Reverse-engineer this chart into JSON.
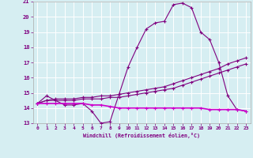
{
  "bg_color": "#d6eef2",
  "grid_color": "#ffffff",
  "line_color": "#800080",
  "xlabel": "Windchill (Refroidissement éolien,°C)",
  "xlim": [
    -0.5,
    23.5
  ],
  "ylim": [
    13,
    21
  ],
  "yticks": [
    13,
    14,
    15,
    16,
    17,
    18,
    19,
    20,
    21
  ],
  "xticks": [
    0,
    1,
    2,
    3,
    4,
    5,
    6,
    7,
    8,
    9,
    10,
    11,
    12,
    13,
    14,
    15,
    16,
    17,
    18,
    19,
    20,
    21,
    22,
    23
  ],
  "line1_x": [
    0,
    1,
    2,
    3,
    4,
    5,
    6,
    7,
    8,
    9,
    10,
    11,
    12,
    13,
    14,
    15,
    16,
    17,
    18,
    19,
    20,
    21,
    22,
    23
  ],
  "line1_y": [
    14.3,
    14.8,
    14.5,
    14.2,
    14.2,
    14.3,
    13.8,
    13.0,
    13.1,
    14.9,
    16.7,
    18.0,
    19.2,
    19.6,
    19.7,
    20.8,
    20.9,
    20.6,
    19.0,
    18.5,
    17.0,
    14.8,
    13.9,
    13.8
  ],
  "line2_x": [
    0,
    1,
    2,
    3,
    4,
    5,
    6,
    7,
    8,
    9,
    10,
    11,
    12,
    13,
    14,
    15,
    16,
    17,
    18,
    19,
    20,
    21,
    22,
    23
  ],
  "line2_y": [
    14.3,
    14.5,
    14.5,
    14.5,
    14.5,
    14.6,
    14.6,
    14.6,
    14.7,
    14.7,
    14.8,
    14.9,
    15.0,
    15.1,
    15.2,
    15.3,
    15.5,
    15.7,
    15.9,
    16.1,
    16.3,
    16.5,
    16.7,
    16.9
  ],
  "line3_x": [
    0,
    1,
    2,
    3,
    4,
    5,
    6,
    7,
    8,
    9,
    10,
    11,
    12,
    13,
    14,
    15,
    16,
    17,
    18,
    19,
    20,
    21,
    22,
    23
  ],
  "line3_y": [
    14.3,
    14.5,
    14.6,
    14.6,
    14.6,
    14.7,
    14.7,
    14.8,
    14.8,
    14.9,
    15.0,
    15.1,
    15.2,
    15.3,
    15.4,
    15.6,
    15.8,
    16.0,
    16.2,
    16.4,
    16.6,
    16.9,
    17.1,
    17.3
  ],
  "line4_x": [
    0,
    1,
    2,
    3,
    4,
    5,
    6,
    7,
    8,
    9,
    10,
    11,
    12,
    13,
    14,
    15,
    16,
    17,
    18,
    19,
    20,
    21,
    22,
    23
  ],
  "line4_y": [
    14.3,
    14.3,
    14.3,
    14.3,
    14.3,
    14.3,
    14.2,
    14.2,
    14.1,
    14.0,
    14.0,
    14.0,
    14.0,
    14.0,
    14.0,
    14.0,
    14.0,
    14.0,
    14.0,
    13.9,
    13.9,
    13.9,
    13.9,
    13.8
  ]
}
